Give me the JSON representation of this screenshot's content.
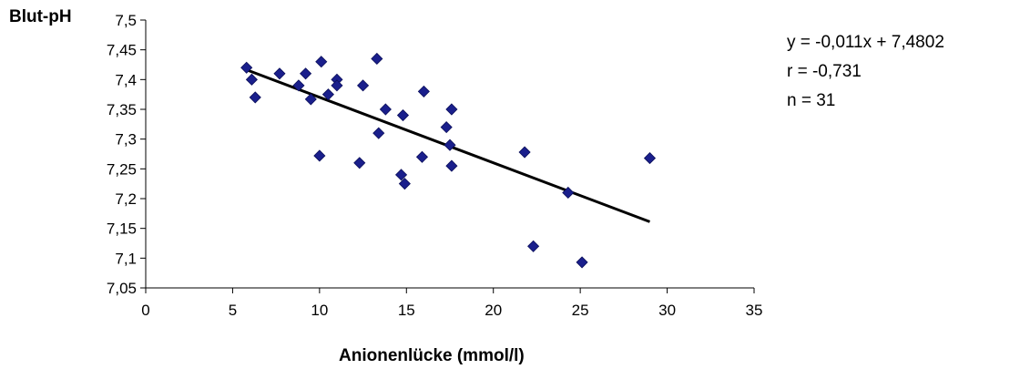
{
  "chart_data": {
    "type": "scatter",
    "ylabel": "Blut-pH",
    "xlabel": "Anionenlücke (mmol/l)",
    "xlim": [
      0,
      35
    ],
    "ylim": [
      7.05,
      7.5
    ],
    "xticks": [
      "0",
      "5",
      "10",
      "15",
      "20",
      "25",
      "30",
      "35"
    ],
    "yticks": [
      "7,05",
      "7,1",
      "7,15",
      "7,2",
      "7,25",
      "7,3",
      "7,35",
      "7,4",
      "7,45",
      "7,5"
    ],
    "grid": false,
    "marker": "diamond",
    "marker_color": "#1a1f8c",
    "trendline": {
      "slope": -0.011,
      "intercept": 7.4802,
      "x_range": [
        5.8,
        29
      ],
      "color": "#000000"
    },
    "annotations": [
      "y = -0,011x + 7,4802",
      "r = -0,731",
      "n = 31"
    ],
    "points": [
      {
        "x": 5.8,
        "y": 7.42
      },
      {
        "x": 6.1,
        "y": 7.4
      },
      {
        "x": 6.3,
        "y": 7.37
      },
      {
        "x": 7.7,
        "y": 7.41
      },
      {
        "x": 8.8,
        "y": 7.39
      },
      {
        "x": 9.2,
        "y": 7.41
      },
      {
        "x": 9.5,
        "y": 7.367
      },
      {
        "x": 10.0,
        "y": 7.272
      },
      {
        "x": 10.1,
        "y": 7.43
      },
      {
        "x": 10.5,
        "y": 7.375
      },
      {
        "x": 11.0,
        "y": 7.4
      },
      {
        "x": 11.0,
        "y": 7.39
      },
      {
        "x": 12.3,
        "y": 7.26
      },
      {
        "x": 12.5,
        "y": 7.39
      },
      {
        "x": 13.3,
        "y": 7.435
      },
      {
        "x": 13.4,
        "y": 7.31
      },
      {
        "x": 13.8,
        "y": 7.35
      },
      {
        "x": 14.7,
        "y": 7.24
      },
      {
        "x": 14.8,
        "y": 7.34
      },
      {
        "x": 14.9,
        "y": 7.225
      },
      {
        "x": 15.9,
        "y": 7.27
      },
      {
        "x": 16.0,
        "y": 7.38
      },
      {
        "x": 17.3,
        "y": 7.32
      },
      {
        "x": 17.5,
        "y": 7.29
      },
      {
        "x": 17.6,
        "y": 7.35
      },
      {
        "x": 17.6,
        "y": 7.255
      },
      {
        "x": 21.8,
        "y": 7.278
      },
      {
        "x": 22.3,
        "y": 7.12
      },
      {
        "x": 24.3,
        "y": 7.21
      },
      {
        "x": 25.1,
        "y": 7.093
      },
      {
        "x": 29.0,
        "y": 7.268
      }
    ]
  }
}
